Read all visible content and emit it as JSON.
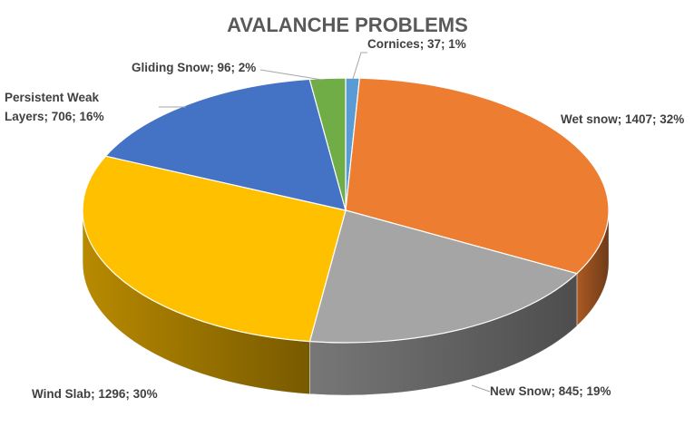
{
  "chart_data": {
    "type": "pie",
    "style": "3d",
    "title": "AVALANCHE PROBLEMS",
    "slices": [
      {
        "label": "Cornices; 37; 1%",
        "name": "Cornices",
        "value": 37,
        "percent": 1,
        "color": "#5b9bd5"
      },
      {
        "label": "Wet snow; 1407; 32%",
        "name": "Wet snow",
        "value": 1407,
        "percent": 32,
        "color": "#ed7d31"
      },
      {
        "label": "New Snow; 845; 19%",
        "name": "New Snow",
        "value": 845,
        "percent": 19,
        "color": "#a5a5a5"
      },
      {
        "label": "Wind Slab; 1296; 30%",
        "name": "Wind Slab",
        "value": 1296,
        "percent": 30,
        "color": "#ffc000"
      },
      {
        "label_lines": [
          "Persistent Weak",
          "Layers; 706; 16%"
        ],
        "name": "Persistent Weak Layers",
        "value": 706,
        "percent": 16,
        "color": "#4472c4"
      },
      {
        "label": "Gliding Snow; 96; 2%",
        "name": "Gliding Snow",
        "value": 96,
        "percent": 2,
        "color": "#70ad47"
      }
    ]
  }
}
